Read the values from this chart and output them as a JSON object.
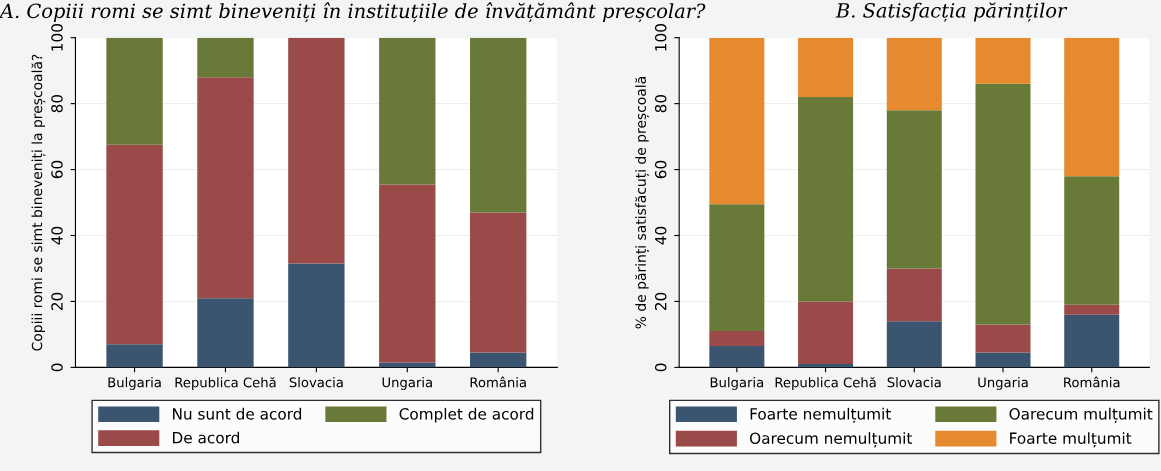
{
  "chart_data": [
    {
      "type": "bar",
      "title": "A. Copiii romi se simt bineveniți în instituțiile de învățământ preșcolar?",
      "ylabel": "Copiii romi se simt bineveniți la preșcoală?",
      "categories": [
        "Bulgaria",
        "Republica Cehă",
        "Slovacia",
        "Ungaria",
        "România"
      ],
      "stacked": true,
      "ylim": [
        0,
        100
      ],
      "yticks": [
        0,
        20,
        40,
        60,
        80,
        100
      ],
      "grid": "y",
      "legend": "bottom",
      "series": [
        {
          "name": "Nu sunt de acord",
          "color": "#3b5470",
          "values": [
            7,
            21,
            31.5,
            1.5,
            4.5
          ]
        },
        {
          "name": "De acord",
          "color": "#9a4a48",
          "values": [
            60.5,
            67,
            68.5,
            54,
            42.5
          ]
        },
        {
          "name": "Complet de acord",
          "color": "#697a38",
          "values": [
            32.5,
            12,
            0,
            44.5,
            53
          ]
        }
      ]
    },
    {
      "type": "bar",
      "title": "B. Satisfacția părinților",
      "ylabel": "% de părinți satisfăcuți de preșcoală",
      "categories": [
        "Bulgaria",
        "Republica Cehă",
        "Slovacia",
        "Ungaria",
        "România"
      ],
      "stacked": true,
      "ylim": [
        0,
        100
      ],
      "yticks": [
        0,
        20,
        40,
        60,
        80,
        100
      ],
      "grid": "y",
      "legend": "bottom",
      "series": [
        {
          "name": "Foarte nemulțumit",
          "color": "#3b5470",
          "values": [
            6.5,
            1,
            14,
            4.5,
            16
          ]
        },
        {
          "name": "Oarecum nemulțumit",
          "color": "#9a4a48",
          "values": [
            4.5,
            19,
            16,
            8.5,
            3
          ]
        },
        {
          "name": "Oarecum mulțumit",
          "color": "#697a38",
          "values": [
            38.5,
            62,
            48,
            73,
            39
          ]
        },
        {
          "name": "Foarte mulțumit",
          "color": "#e58a2e",
          "values": [
            50.5,
            18,
            22,
            14,
            42
          ]
        }
      ]
    }
  ]
}
